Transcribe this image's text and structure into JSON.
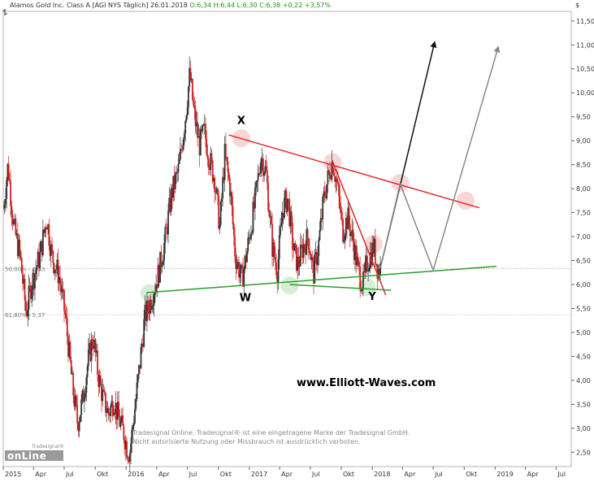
{
  "header": {
    "title": "Alamos Gold Inc. Class A [AGI NYS  Täglich] 26.01.2018",
    "ohlc": "O:6,34 H:6,44 L:6,30 C:6,38 +0,22 +3,57%"
  },
  "currency_label": "$",
  "watermark": "www.Elliott-Waves.com",
  "disclaimer": {
    "line1": "Tradesignal Online. Tradesignal® ist eine eingetragene Marke der Tradesignal GmbH.",
    "line2": "Nicht autorisierte Nutzung oder Missbrauch ist ausdrücklich verboten."
  },
  "logo": {
    "main": "onLine",
    "tag": "Tradesignal®"
  },
  "colors": {
    "up_candle": "#333333",
    "down_candle": "#cc2222",
    "resistance": "#e8262a",
    "support": "#2a9d2a",
    "arrow_bull": "#111111",
    "arrow_alt": "#888888",
    "fib_line": "#999999",
    "highlight_red": "#f6c8c8",
    "highlight_green": "#c8e8c8"
  },
  "chart_data": {
    "type": "candlestick",
    "title": "Alamos Gold Inc. Class A [AGI NYS  Täglich] 26.01.2018",
    "ylim": [
      2.2,
      11.7
    ],
    "y_ticks": [
      "2,50",
      "3,00",
      "3,50",
      "4,00",
      "4,50",
      "5,00",
      "5,50",
      "6,00",
      "6,50",
      "7,00",
      "7,50",
      "8,00",
      "8,50",
      "9,00",
      "9,50",
      "10,00",
      "10,50",
      "11,00",
      "11,50"
    ],
    "y_tick_values": [
      2.5,
      3.0,
      3.5,
      4.0,
      4.5,
      5.0,
      5.5,
      6.0,
      6.5,
      7.0,
      7.5,
      8.0,
      8.5,
      9.0,
      9.5,
      10.0,
      10.5,
      11.0,
      11.5
    ],
    "xlim": [
      "2015-01-01",
      "2019-08-15"
    ],
    "x_ticks": [
      {
        "label": "2015",
        "date": "2015-01-01"
      },
      {
        "label": "Apr",
        "date": "2015-04-01"
      },
      {
        "label": "Jul",
        "date": "2015-07-01"
      },
      {
        "label": "Okt",
        "date": "2015-10-01"
      },
      {
        "label": "2016",
        "date": "2016-01-01"
      },
      {
        "label": "Apr",
        "date": "2016-04-01"
      },
      {
        "label": "Jul",
        "date": "2016-07-01"
      },
      {
        "label": "Okt",
        "date": "2016-10-01"
      },
      {
        "label": "2017",
        "date": "2017-01-01"
      },
      {
        "label": "Apr",
        "date": "2017-04-01"
      },
      {
        "label": "Jul",
        "date": "2017-07-01"
      },
      {
        "label": "Okt",
        "date": "2017-10-01"
      },
      {
        "label": "2018",
        "date": "2018-01-01"
      },
      {
        "label": "Apr",
        "date": "2018-04-01"
      },
      {
        "label": "Jul",
        "date": "2018-07-01"
      },
      {
        "label": "Okt",
        "date": "2018-10-01"
      },
      {
        "label": "2019",
        "date": "2019-01-01"
      },
      {
        "label": "Apr",
        "date": "2019-04-01"
      },
      {
        "label": "Jul",
        "date": "2019-07-01"
      }
    ],
    "price_path": [
      [
        "2015-01-02",
        7.6
      ],
      [
        "2015-01-15",
        8.5
      ],
      [
        "2015-02-01",
        7.2
      ],
      [
        "2015-02-20",
        6.6
      ],
      [
        "2015-03-10",
        5.4
      ],
      [
        "2015-03-25",
        6.0
      ],
      [
        "2015-04-20",
        6.6
      ],
      [
        "2015-05-10",
        7.4
      ],
      [
        "2015-05-25",
        6.6
      ],
      [
        "2015-06-15",
        6.2
      ],
      [
        "2015-07-05",
        5.3
      ],
      [
        "2015-07-25",
        3.9
      ],
      [
        "2015-08-10",
        3.1
      ],
      [
        "2015-08-25",
        3.6
      ],
      [
        "2015-09-10",
        4.4
      ],
      [
        "2015-09-25",
        4.9
      ],
      [
        "2015-10-10",
        4.1
      ],
      [
        "2015-10-25",
        3.6
      ],
      [
        "2015-11-10",
        3.3
      ],
      [
        "2015-11-25",
        3.6
      ],
      [
        "2015-12-10",
        3.2
      ],
      [
        "2015-12-25",
        2.9
      ],
      [
        "2016-01-10",
        2.4
      ],
      [
        "2016-01-25",
        3.3
      ],
      [
        "2016-02-10",
        4.3
      ],
      [
        "2016-02-25",
        5.3
      ],
      [
        "2016-03-15",
        5.7
      ],
      [
        "2016-04-05",
        6.2
      ],
      [
        "2016-04-25",
        6.9
      ],
      [
        "2016-05-15",
        7.9
      ],
      [
        "2016-06-05",
        8.4
      ],
      [
        "2016-06-25",
        9.5
      ],
      [
        "2016-07-08",
        10.4
      ],
      [
        "2016-07-20",
        9.6
      ],
      [
        "2016-08-05",
        8.9
      ],
      [
        "2016-08-20",
        9.2
      ],
      [
        "2016-09-05",
        8.6
      ],
      [
        "2016-09-20",
        8.2
      ],
      [
        "2016-10-05",
        7.2
      ],
      [
        "2016-10-20",
        8.7
      ],
      [
        "2016-11-05",
        8.0
      ],
      [
        "2016-11-20",
        6.6
      ],
      [
        "2016-12-10",
        6.1
      ],
      [
        "2016-12-25",
        6.7
      ],
      [
        "2017-01-15",
        7.6
      ],
      [
        "2017-02-05",
        8.7
      ],
      [
        "2017-02-20",
        8.3
      ],
      [
        "2017-03-10",
        6.8
      ],
      [
        "2017-03-25",
        6.3
      ],
      [
        "2017-04-10",
        7.6
      ],
      [
        "2017-04-25",
        7.8
      ],
      [
        "2017-05-10",
        6.8
      ],
      [
        "2017-05-25",
        6.4
      ],
      [
        "2017-06-10",
        6.8
      ],
      [
        "2017-06-25",
        7.0
      ],
      [
        "2017-07-10",
        6.2
      ],
      [
        "2017-07-25",
        6.8
      ],
      [
        "2017-08-10",
        7.8
      ],
      [
        "2017-08-25",
        8.3
      ],
      [
        "2017-09-05",
        8.6
      ],
      [
        "2017-09-20",
        8.0
      ],
      [
        "2017-10-05",
        7.1
      ],
      [
        "2017-10-20",
        7.4
      ],
      [
        "2017-11-05",
        6.9
      ],
      [
        "2017-11-20",
        6.3
      ],
      [
        "2017-12-05",
        6.0
      ],
      [
        "2017-12-15",
        6.4
      ],
      [
        "2018-01-05",
        6.8
      ],
      [
        "2018-01-18",
        6.3
      ],
      [
        "2018-01-26",
        6.38
      ]
    ],
    "trendlines": [
      {
        "name": "resistance",
        "from": [
          "2016-11-01",
          9.12
        ],
        "to": [
          "2018-11-15",
          7.6
        ]
      },
      {
        "name": "steep-resistance",
        "from": [
          "2017-09-05",
          8.57
        ],
        "to": [
          "2018-02-10",
          5.78
        ]
      },
      {
        "name": "support",
        "from": [
          "2016-03-01",
          5.83
        ],
        "to": [
          "2019-01-05",
          6.38
        ]
      },
      {
        "name": "support-short",
        "from": [
          "2017-05-01",
          6.0
        ],
        "to": [
          "2018-02-25",
          5.88
        ]
      }
    ],
    "scenario_paths": [
      {
        "name": "bullish",
        "points": [
          [
            "2018-01-25",
            6.35
          ],
          [
            "2018-07-05",
            11.05
          ]
        ]
      },
      {
        "name": "alternate",
        "points": [
          [
            "2018-01-25",
            6.35
          ],
          [
            "2018-03-25",
            8.1
          ],
          [
            "2018-07-01",
            6.3
          ],
          [
            "2019-01-10",
            10.95
          ]
        ]
      }
    ],
    "labels": [
      {
        "text": "X",
        "date": "2016-12-08",
        "value": 9.35
      },
      {
        "text": "W",
        "date": "2016-12-20",
        "value": 5.65
      },
      {
        "text": "Y",
        "date": "2018-01-01",
        "value": 5.68
      }
    ],
    "fib_levels": [
      {
        "label": "50,00% - 6,33",
        "value": 6.33
      },
      {
        "label": "61,80% - 5,37",
        "value": 5.37
      }
    ],
    "highlights": [
      {
        "date": "2016-12-08",
        "value": 9.05,
        "color": "red"
      },
      {
        "date": "2017-09-05",
        "value": 8.55,
        "color": "red"
      },
      {
        "date": "2018-03-25",
        "value": 8.12,
        "color": "red"
      },
      {
        "date": "2018-10-05",
        "value": 7.75,
        "color": "red"
      },
      {
        "date": "2018-01-05",
        "value": 6.85,
        "color": "red"
      },
      {
        "date": "2016-03-10",
        "value": 5.82,
        "color": "green"
      },
      {
        "date": "2017-05-01",
        "value": 5.98,
        "color": "green"
      },
      {
        "date": "2017-12-15",
        "value": 5.95,
        "color": "green"
      }
    ]
  }
}
